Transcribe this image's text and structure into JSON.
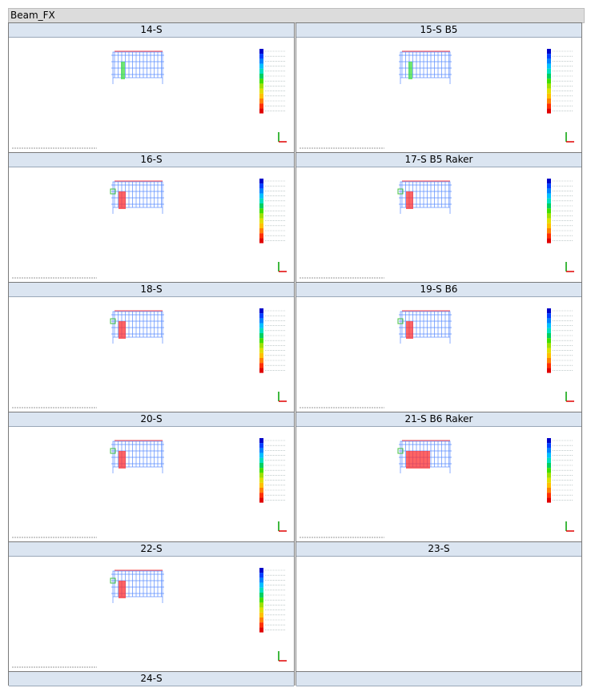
{
  "title": "Beam_FX",
  "panels": [
    {
      "label": "14-S"
    },
    {
      "label": "15-S B5"
    },
    {
      "label": "16-S"
    },
    {
      "label": "17-S B5 Raker"
    },
    {
      "label": "18-S"
    },
    {
      "label": "19-S B6"
    },
    {
      "label": "20-S"
    },
    {
      "label": "21-S B6 Raker"
    },
    {
      "label": "22-S"
    },
    {
      "label": "23-S"
    },
    {
      "label": "24-S"
    }
  ]
}
